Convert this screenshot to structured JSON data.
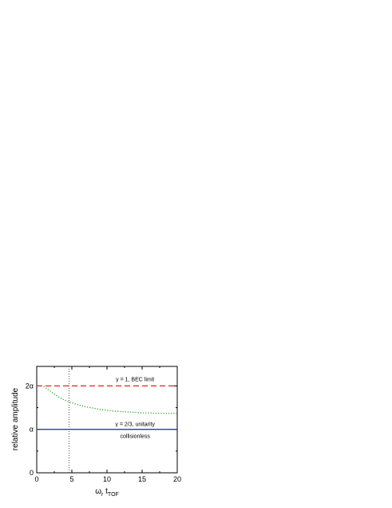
{
  "chart_data": {
    "type": "line",
    "xlabel": {
      "main": "ω",
      "sub1": "r",
      "mid": " t",
      "sub2": "TOF"
    },
    "ylabel": "relative amplitude",
    "xlim": [
      0,
      20
    ],
    "ylim": [
      0,
      2.45
    ],
    "x_ticks": [
      0,
      5,
      10,
      15,
      20
    ],
    "x_tick_labels": [
      "0",
      "5",
      "10",
      "15",
      "20"
    ],
    "y_ticks": [
      0,
      1,
      2
    ],
    "y_tick_labels": [
      "0",
      "α",
      "2α"
    ],
    "vertical_marker": {
      "x": 4.6,
      "style": "dotted"
    },
    "series": [
      {
        "key": "bec",
        "annotation": "γ = 1, BEC limit",
        "color": "#e8201c",
        "style": "dashed",
        "x": [
          0,
          20
        ],
        "y": [
          2.0,
          2.0
        ]
      },
      {
        "key": "unitarity",
        "annotation": "γ = 2/3, unitarity",
        "color": "#2aa02a",
        "style": "dotted",
        "x": [
          1.0,
          1.5,
          2,
          2.5,
          3,
          3.5,
          4,
          5,
          6,
          7,
          8,
          9,
          10,
          11,
          12,
          13,
          14,
          15,
          16,
          17,
          18,
          19,
          20
        ],
        "y": [
          1.99,
          1.93,
          1.87,
          1.81,
          1.76,
          1.71,
          1.67,
          1.61,
          1.56,
          1.52,
          1.49,
          1.46,
          1.44,
          1.42,
          1.41,
          1.4,
          1.39,
          1.38,
          1.38,
          1.37,
          1.37,
          1.37,
          1.37
        ]
      },
      {
        "key": "collisionless",
        "annotation": "collisionless",
        "color": "#2b3aa8",
        "style": "solid",
        "x": [
          0,
          20
        ],
        "y": [
          1.0,
          1.0
        ]
      }
    ]
  }
}
